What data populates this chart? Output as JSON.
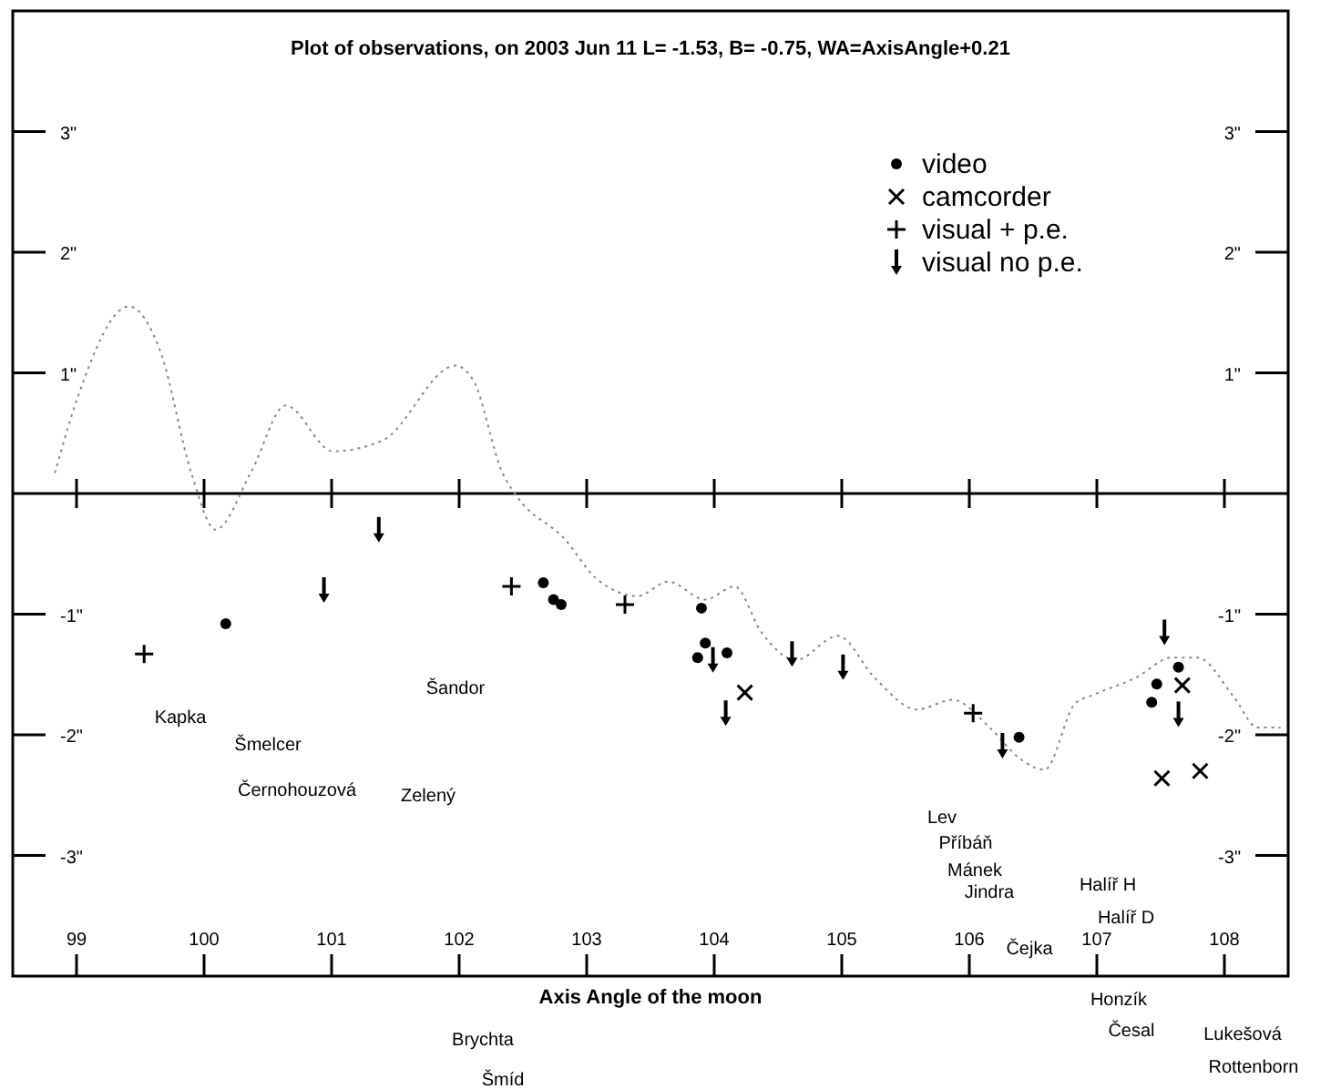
{
  "chart_data": {
    "type": "scatter",
    "title": "Plot of observations, on 2003 Jun 11    L= -1.53,  B= -0.75,  WA=AxisAngle+0.21",
    "xlabel": "Axis Angle of the moon",
    "xlim": [
      98.5,
      108.5
    ],
    "xticks": [
      99,
      100,
      101,
      102,
      103,
      104,
      105,
      106,
      107,
      108
    ],
    "ylim": [
      -4,
      4
    ],
    "yticks": [
      {
        "value": 3,
        "label": "3\""
      },
      {
        "value": 2,
        "label": "2\""
      },
      {
        "value": 1,
        "label": "1\""
      },
      {
        "value": -1,
        "label": "-1\""
      },
      {
        "value": -2,
        "label": "-2\""
      },
      {
        "value": -3,
        "label": "-3\""
      }
    ],
    "y2lim": [
      -4,
      4
    ],
    "y2ticks": [
      {
        "value": 3,
        "label": "3\""
      },
      {
        "value": 2,
        "label": "2\""
      },
      {
        "value": 1,
        "label": "1\""
      },
      {
        "value": -1,
        "label": "-1\""
      },
      {
        "value": -2,
        "label": "-2\""
      },
      {
        "value": -3,
        "label": "-3\""
      }
    ],
    "grid": false,
    "legend": "top right",
    "ref_lines": [
      {
        "axis": "y",
        "value": 0,
        "color": "#000000"
      }
    ],
    "series": [
      {
        "type": "line",
        "color": "#888888",
        "line_style": "dotted",
        "marker": "none",
        "x": [
          98.83,
          99.01,
          99.41,
          99.66,
          99.9,
          100.09,
          100.37,
          100.64,
          101.01,
          101.4,
          101.97,
          102.11,
          102.34,
          102.45,
          102.83,
          103.07,
          103.4,
          103.64,
          103.93,
          104.16,
          104.37,
          104.64,
          104.97,
          105.26,
          105.59,
          105.87,
          106.16,
          106.4,
          106.59,
          106.83,
          106.97,
          107.3,
          107.59,
          107.79,
          108.07,
          108.26,
          108.44
        ],
        "values": [
          0.17,
          0.8,
          1.55,
          1.17,
          0.17,
          -0.3,
          0.18,
          0.73,
          0.35,
          0.44,
          1.06,
          0.94,
          0.17,
          -0.02,
          -0.38,
          -0.7,
          -0.85,
          -0.73,
          -0.88,
          -0.77,
          -1.15,
          -1.38,
          -1.18,
          -1.53,
          -1.79,
          -1.71,
          -1.94,
          -2.2,
          -2.29,
          -1.74,
          -1.67,
          -1.53,
          -1.36,
          -1.36,
          -1.68,
          -1.94,
          -1.94
        ]
      },
      {
        "name": "video",
        "color": "#000000",
        "marker": "circle",
        "x": [
          100.17,
          102.66,
          102.74,
          102.8,
          103.9,
          103.93,
          103.87,
          104.1,
          106.39,
          107.47,
          107.43,
          107.64
        ],
        "values": [
          -1.08,
          -0.74,
          -0.88,
          -0.92,
          -0.95,
          -1.24,
          -1.36,
          -1.32,
          -2.02,
          -1.58,
          -1.73,
          -1.44
        ]
      },
      {
        "name": "camcorder",
        "color": "#000000",
        "marker": "cross",
        "x": [
          104.24,
          107.67,
          107.51,
          107.81
        ],
        "values": [
          -1.65,
          -1.59,
          -2.36,
          -2.3
        ]
      },
      {
        "name": "visual + p.e.",
        "color": "#000000",
        "x": [
          99.53,
          102.41,
          103.3,
          106.03
        ],
        "values": [
          -1.33,
          -0.77,
          -0.92,
          -1.82
        ]
      },
      {
        "name": "visual no p.e.",
        "color": "#000000",
        "x": [
          100.94,
          101.37,
          103.99,
          104.09,
          104.61,
          105.01,
          106.26,
          107.53,
          107.64
        ],
        "values": [
          -0.8,
          -0.3,
          -1.38,
          -1.82,
          -1.33,
          -1.44,
          -2.09,
          -1.15,
          -1.83
        ]
      }
    ],
    "annotations": [
      "Kapka",
      "Šmelcer",
      "Černohouzová",
      "Zelený",
      "Šandor",
      "Lev",
      "Příbáň",
      "Mánek",
      "Jindra",
      "Halíř H",
      "Halíř D",
      "Čejka",
      "Honzík",
      "Česal",
      "Brychta",
      "Šmíd",
      "Lukešová",
      "Rottenborn"
    ]
  }
}
